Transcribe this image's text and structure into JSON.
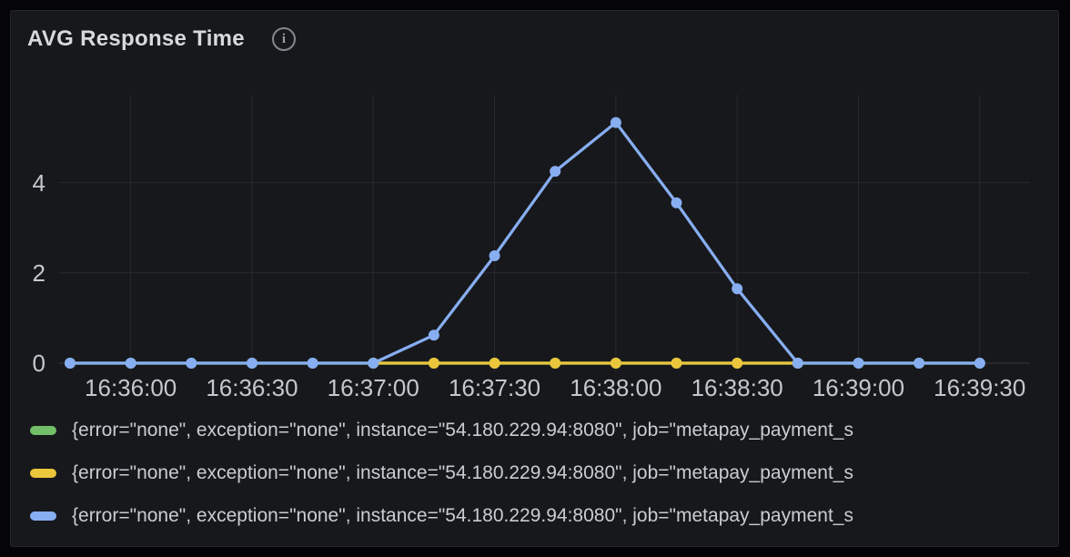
{
  "panel": {
    "title": "AVG Response Time",
    "info_icon_glyph": "i"
  },
  "colors": {
    "panel_background": "#17181c",
    "panel_border": "#26272c",
    "grid": "rgba(255,255,255,0.07)",
    "axis_line": "rgba(255,255,255,0.14)",
    "tick_text": "#c6c7cc",
    "green": "#73bf69",
    "yellow": "#eac63c",
    "blue": "#87aef1"
  },
  "chart_data": {
    "type": "line",
    "title": "AVG Response Time",
    "x": [
      "16:35:45",
      "16:36:00",
      "16:36:15",
      "16:36:30",
      "16:36:45",
      "16:37:00",
      "16:37:15",
      "16:37:30",
      "16:37:45",
      "16:38:00",
      "16:38:15",
      "16:38:30",
      "16:38:45",
      "16:39:00",
      "16:39:15",
      "16:39:30"
    ],
    "xticks": [
      "16:36:00",
      "16:36:30",
      "16:37:00",
      "16:37:30",
      "16:38:00",
      "16:38:30",
      "16:39:00",
      "16:39:30"
    ],
    "yticks": [
      0,
      2,
      4
    ],
    "ylim": [
      0,
      5.95
    ],
    "grid": true,
    "legend_position": "bottom",
    "point_markers": true,
    "series": [
      {
        "name": "series-green",
        "color": "#73bf69",
        "values": [
          0,
          0,
          0,
          0,
          0,
          0,
          0,
          0,
          0,
          0,
          0,
          0,
          0,
          0,
          0,
          0
        ]
      },
      {
        "name": "series-yellow",
        "color": "#eac63c",
        "values": [
          null,
          null,
          null,
          null,
          null,
          0,
          0,
          0,
          0,
          0,
          0,
          0,
          0,
          null,
          null,
          null
        ]
      },
      {
        "name": "series-blue",
        "color": "#87aef1",
        "values": [
          0,
          0,
          0,
          0,
          0,
          0,
          0.62,
          2.38,
          4.25,
          5.33,
          3.55,
          1.65,
          0,
          0,
          0,
          0
        ]
      }
    ]
  },
  "legend": {
    "items": [
      {
        "color": "#73bf69",
        "label": "{error=\"none\", exception=\"none\", instance=\"54.180.229.94:8080\", job=\"metapay_payment_s"
      },
      {
        "color": "#eac63c",
        "label": "{error=\"none\", exception=\"none\", instance=\"54.180.229.94:8080\", job=\"metapay_payment_s"
      },
      {
        "color": "#87aef1",
        "label": "{error=\"none\", exception=\"none\", instance=\"54.180.229.94:8080\", job=\"metapay_payment_s"
      }
    ]
  }
}
